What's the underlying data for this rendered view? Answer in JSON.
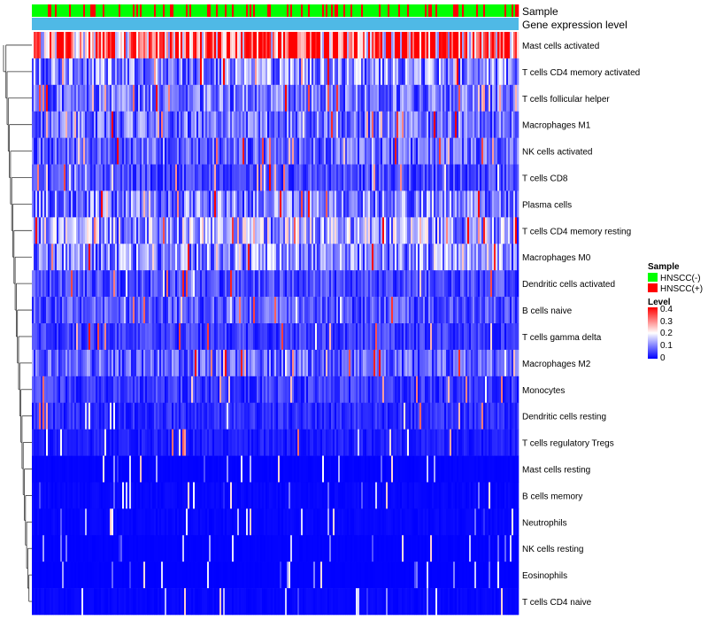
{
  "chart_data": {
    "type": "heatmap",
    "title": "",
    "annotation_tracks": [
      "Sample",
      "Gene expression level"
    ],
    "rows": [
      "Mast cells activated",
      "T cells CD4 memory activated",
      "T cells follicular helper",
      "Macrophages M1",
      "NK cells activated",
      "T cells CD8",
      "Plasma cells",
      "T cells CD4 memory resting",
      "Macrophages M0",
      "Dendritic cells activated",
      "B cells naive",
      "T cells gamma delta",
      "Macrophages M2",
      "Monocytes",
      "Dendritic cells resting",
      "T cells regulatory  Tregs",
      "Mast cells resting",
      "B cells memory",
      "Neutrophils",
      "NK cells resting",
      "Eosinophils",
      "T cells CD4 naive"
    ],
    "row_mean_level": [
      0.3,
      0.1,
      0.08,
      0.08,
      0.07,
      0.05,
      0.09,
      0.12,
      0.1,
      0.05,
      0.06,
      0.04,
      0.07,
      0.04,
      0.03,
      0.02,
      0.005,
      0.01,
      0.01,
      0.003,
      0.002,
      0.01
    ],
    "sample_count": 275,
    "hnscc_positive_fraction": 0.22,
    "legend": {
      "sample_title": "Sample",
      "sample_items": [
        {
          "label": "HNSCC(-)",
          "color": "#00ff00"
        },
        {
          "label": "HNSCC(+)",
          "color": "#ff0000"
        }
      ],
      "level_title": "Level",
      "level_ticks": [
        "0.4",
        "0.3",
        "0.2",
        "0.1",
        "0"
      ],
      "level_range": [
        0,
        0.4
      ]
    },
    "colors": {
      "low": "#0000ff",
      "mid": "#ffffff",
      "high": "#ff0000",
      "expression_bar": "#4fb9e6"
    }
  }
}
